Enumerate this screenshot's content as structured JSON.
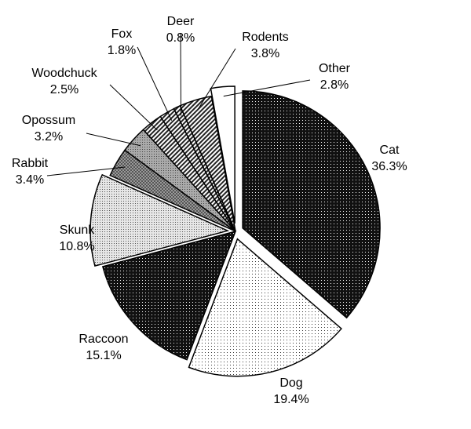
{
  "chart_data": {
    "type": "pie",
    "title": "",
    "slices": [
      {
        "label": "Cat",
        "value": 36.3,
        "value_label": "36.3%",
        "exploded": true,
        "pattern": "dark-dots"
      },
      {
        "label": "Dog",
        "value": 19.4,
        "value_label": "19.4%",
        "exploded": true,
        "pattern": "light-dots"
      },
      {
        "label": "Raccoon",
        "value": 15.1,
        "value_label": "15.1%",
        "exploded": false,
        "pattern": "dark-dots"
      },
      {
        "label": "Skunk",
        "value": 10.8,
        "value_label": "10.8%",
        "exploded": true,
        "pattern": "medium-dots"
      },
      {
        "label": "Rabbit",
        "value": 3.4,
        "value_label": "3.4%",
        "exploded": false,
        "pattern": "cross-hatch"
      },
      {
        "label": "Opossum",
        "value": 3.2,
        "value_label": "3.2%",
        "exploded": false,
        "pattern": "gray-dots"
      },
      {
        "label": "Woodchuck",
        "value": 2.5,
        "value_label": "2.5%",
        "exploded": false,
        "pattern": "diagonal-lines"
      },
      {
        "label": "Fox",
        "value": 1.8,
        "value_label": "1.8%",
        "exploded": false,
        "pattern": "diagonal-lines"
      },
      {
        "label": "Deer",
        "value": 0.8,
        "value_label": "0.8%",
        "exploded": false,
        "pattern": "diagonal-lines"
      },
      {
        "label": "Rodents",
        "value": 3.8,
        "value_label": "3.8%",
        "exploded": false,
        "pattern": "diagonal-lines"
      },
      {
        "label": "Other",
        "value": 2.8,
        "value_label": "2.8%",
        "exploded": true,
        "pattern": "white"
      }
    ],
    "legend": "none",
    "labels": "outside with leader lines"
  }
}
